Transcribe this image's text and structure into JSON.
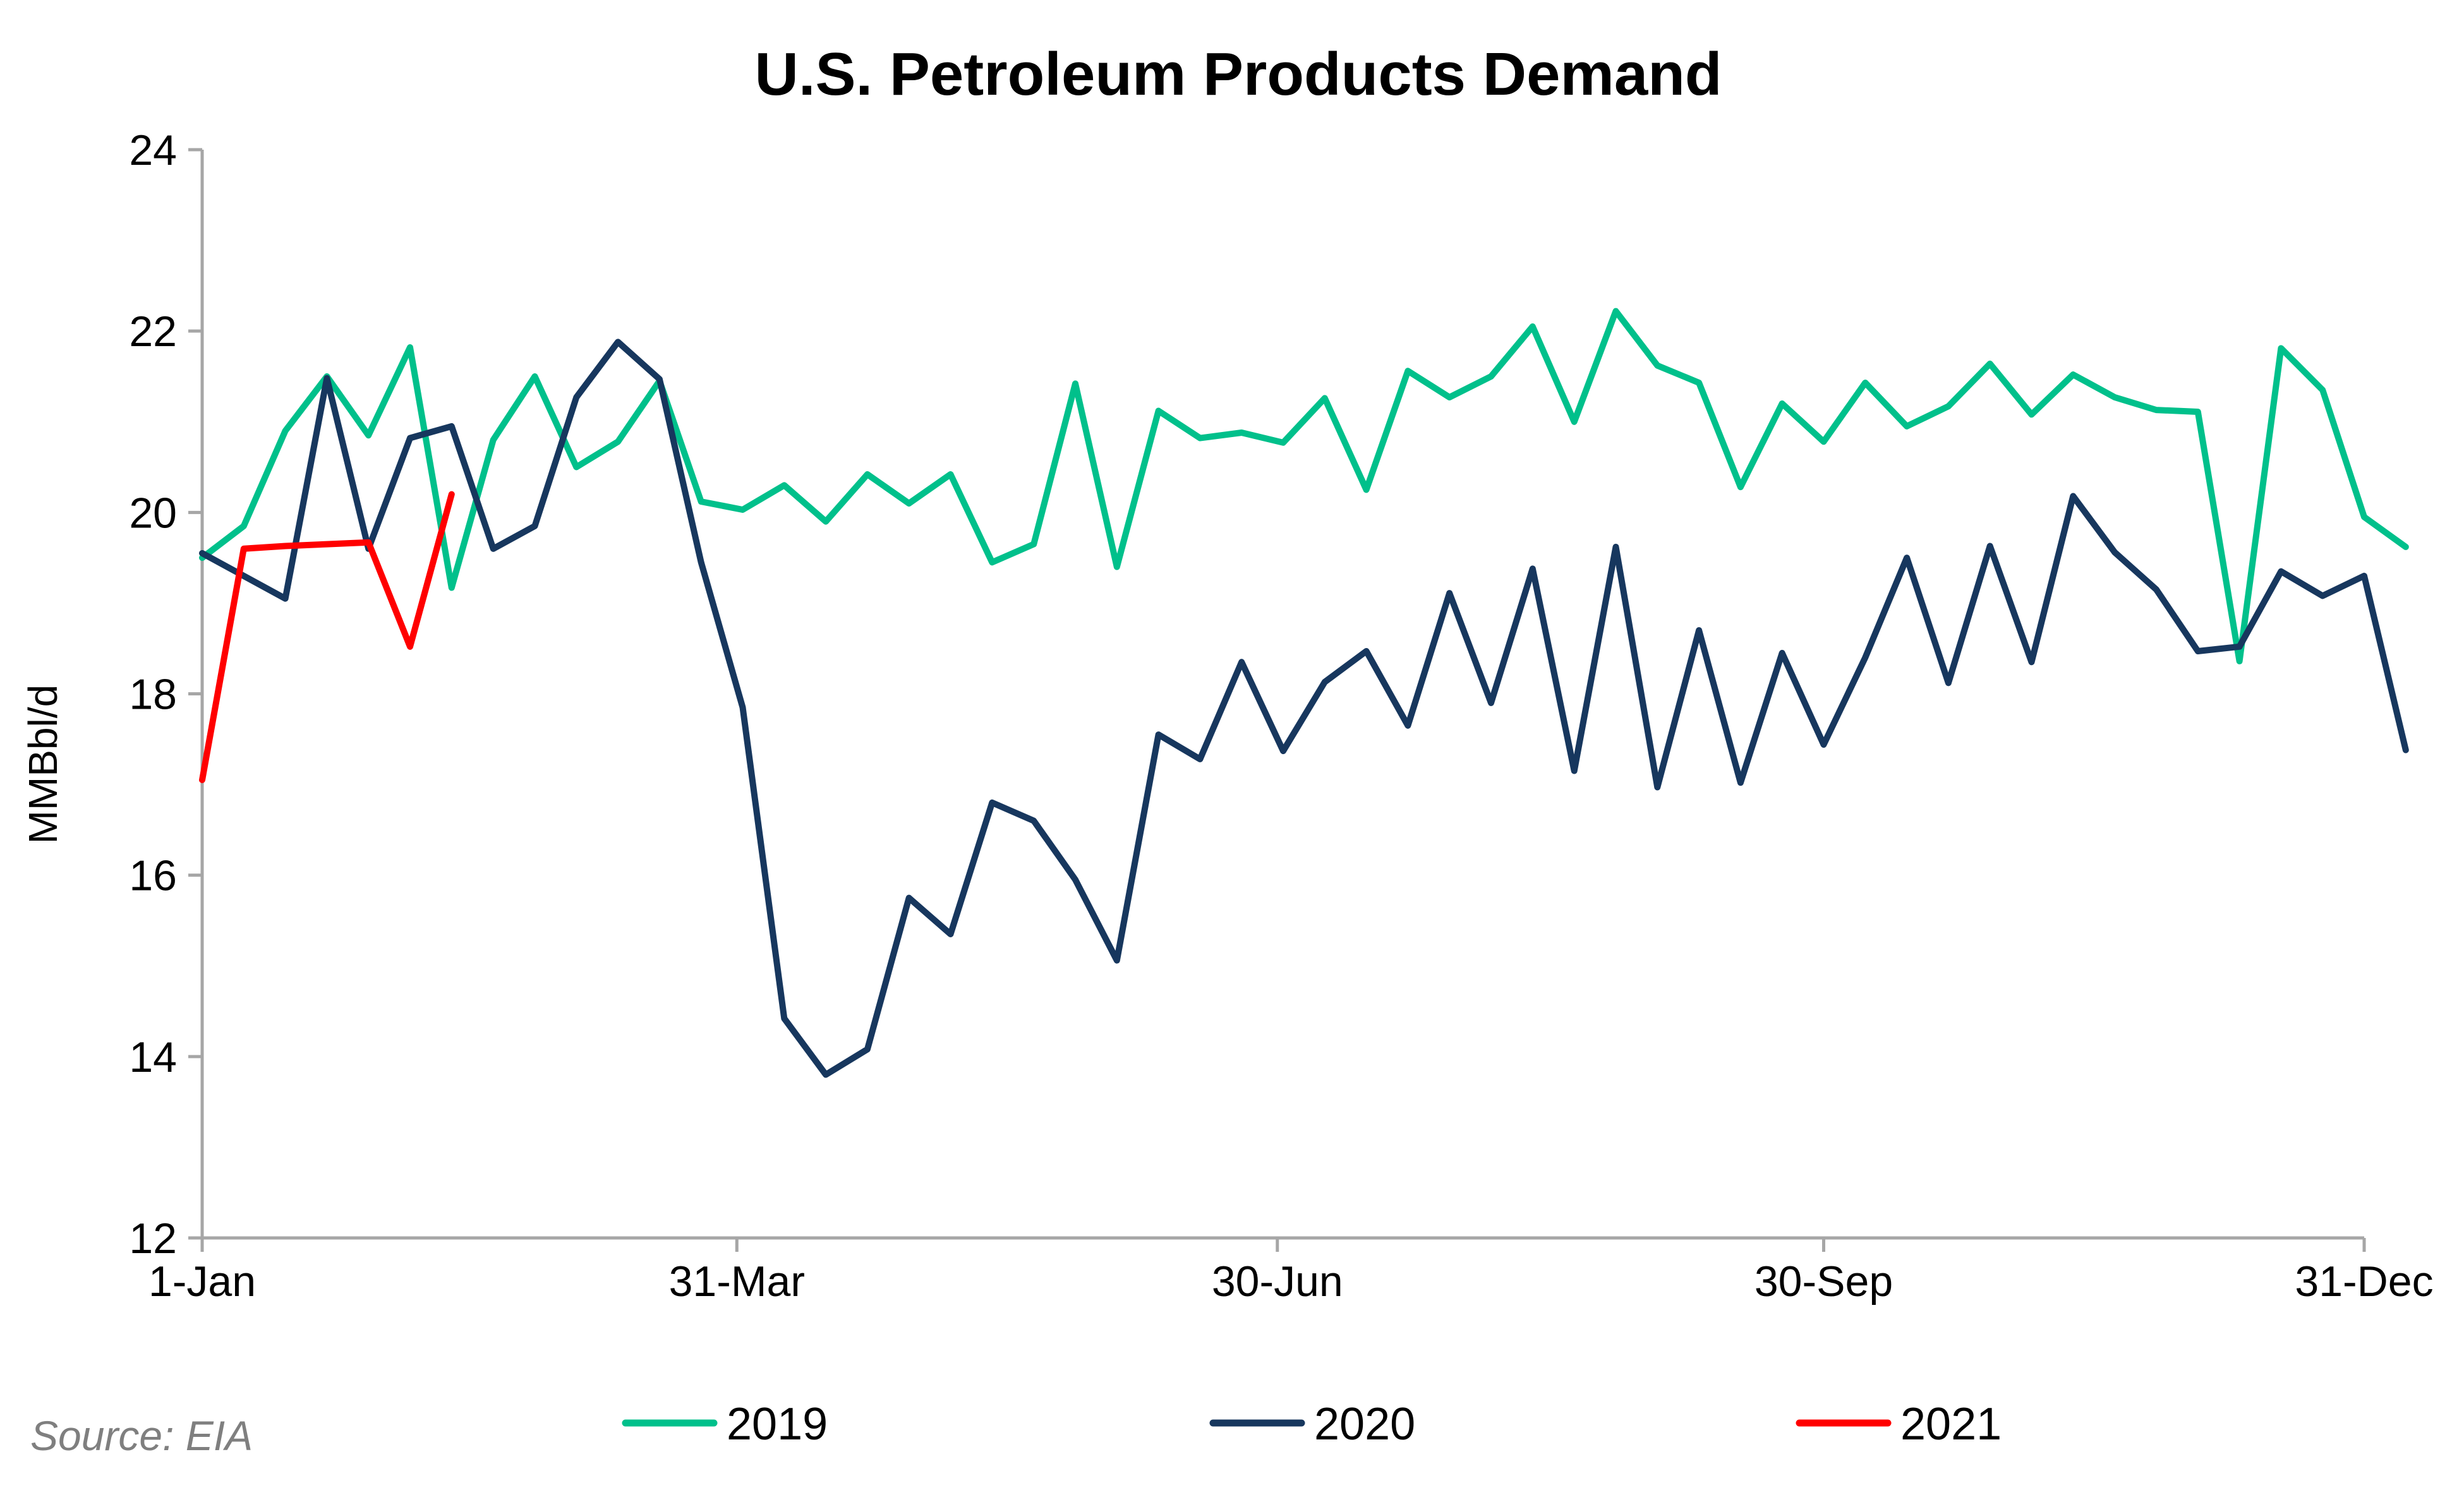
{
  "chart_data": {
    "type": "line",
    "title": "U.S. Petroleum Products Demand",
    "xlabel": "",
    "ylabel": "MMBbl/d",
    "ylim": [
      12,
      24
    ],
    "yticks": [
      12,
      14,
      16,
      18,
      20,
      22,
      24
    ],
    "xlim_week": [
      1,
      53
    ],
    "x_tick_labels": [
      {
        "label": "1-Jan",
        "week": 1
      },
      {
        "label": "31-Mar",
        "week": 13.86
      },
      {
        "label": "30-Jun",
        "week": 26.86
      },
      {
        "label": "30-Sep",
        "week": 40.0
      },
      {
        "label": "31-Dec",
        "week": 53
      }
    ],
    "grid": false,
    "legend_position": "bottom",
    "source": "Source: EIA",
    "series": [
      {
        "name": "2019",
        "color": "#00c08b",
        "values": [
          19.5,
          19.85,
          20.9,
          21.5,
          20.85,
          21.82,
          19.17,
          20.8,
          21.5,
          20.5,
          20.78,
          21.45,
          20.12,
          20.03,
          20.3,
          19.9,
          20.42,
          20.1,
          20.42,
          19.45,
          19.65,
          21.42,
          19.4,
          21.12,
          20.82,
          20.88,
          20.77,
          21.26,
          20.25,
          21.56,
          21.27,
          21.5,
          22.05,
          21.0,
          22.22,
          21.62,
          21.43,
          20.28,
          21.2,
          20.78,
          21.43,
          20.95,
          21.17,
          21.64,
          21.08,
          21.52,
          21.27,
          21.13,
          21.11,
          18.36,
          21.81,
          21.35,
          19.95,
          19.62
        ]
      },
      {
        "name": "2020",
        "color": "#17375e",
        "values": [
          19.55,
          19.3,
          19.05,
          21.48,
          19.6,
          20.82,
          20.95,
          19.6,
          19.85,
          21.27,
          21.88,
          21.47,
          19.45,
          17.85,
          14.42,
          13.8,
          14.08,
          15.75,
          15.35,
          16.8,
          16.6,
          15.95,
          15.06,
          17.55,
          17.28,
          18.35,
          17.37,
          18.13,
          18.47,
          17.65,
          19.11,
          17.9,
          19.38,
          17.15,
          19.62,
          16.97,
          18.7,
          17.02,
          18.45,
          17.44,
          18.4,
          19.5,
          18.12,
          19.63,
          18.35,
          20.18,
          19.56,
          19.15,
          18.47,
          18.52,
          19.35,
          19.08,
          19.3,
          17.38
        ]
      },
      {
        "name": "2021",
        "color": "#ff0000",
        "values": [
          17.05,
          19.6,
          19.63,
          19.65,
          19.67,
          18.52,
          20.2
        ]
      }
    ]
  }
}
